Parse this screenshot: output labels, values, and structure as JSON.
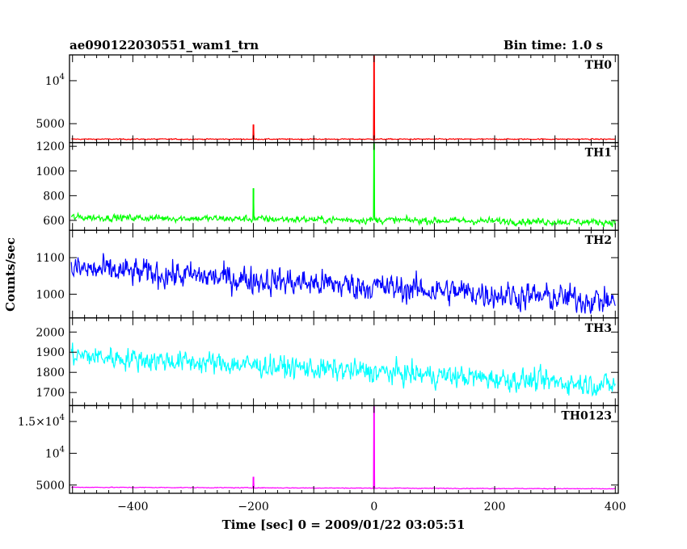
{
  "header": {
    "left": "ae090122030551_wam1_trn",
    "right": "Bin time: 1.0 s"
  },
  "chart_data": {
    "type": "line",
    "title": "ae090122030551_wam1_trn",
    "subtitle": "Bin time: 1.0 s",
    "xlabel": "Time [sec] 0 = 2009/01/22 03:05:51",
    "ylabel": "Counts/sec",
    "xlim": [
      -505,
      405
    ],
    "xticks": [
      -400,
      -200,
      0,
      200,
      400
    ],
    "xtick_labels": [
      "−400",
      "−200",
      "0",
      "200",
      "400"
    ],
    "grid": false,
    "panels": [
      {
        "name": "TH0",
        "color": "#ff0000",
        "ylim": [
          2800,
          13000
        ],
        "yticks": [
          5000,
          10000
        ],
        "ytick_labels": [
          {
            "base": "5000",
            "exp": ""
          },
          {
            "base": "10",
            "exp": "4"
          }
        ],
        "baseline": 3200,
        "noise": 60,
        "trend": 0,
        "spikes": [
          {
            "x": -200,
            "y": 4900
          },
          {
            "x": 0,
            "y": 13000
          }
        ]
      },
      {
        "name": "TH1",
        "color": "#00ff00",
        "ylim": [
          520,
          1230
        ],
        "yticks": [
          600,
          800,
          1000,
          1200
        ],
        "ytick_labels": [
          {
            "base": "600",
            "exp": ""
          },
          {
            "base": "800",
            "exp": ""
          },
          {
            "base": "1000",
            "exp": ""
          },
          {
            "base": "1200",
            "exp": ""
          }
        ],
        "baseline": 625,
        "noise": 28,
        "trend": -40,
        "spikes": [
          {
            "x": -200,
            "y": 860
          },
          {
            "x": 0,
            "y": 1230
          }
        ]
      },
      {
        "name": "TH2",
        "color": "#0000ff",
        "ylim": [
          935,
          1175
        ],
        "yticks": [
          1000,
          1100
        ],
        "ytick_labels": [
          {
            "base": "1000",
            "exp": ""
          },
          {
            "base": "1100",
            "exp": ""
          }
        ],
        "baseline": 1070,
        "noise": 38,
        "trend": -90,
        "spikes": []
      },
      {
        "name": "TH3",
        "color": "#00ffff",
        "ylim": [
          1635,
          2070
        ],
        "yticks": [
          1700,
          1800,
          1900,
          2000
        ],
        "ytick_labels": [
          {
            "base": "1700",
            "exp": ""
          },
          {
            "base": "1800",
            "exp": ""
          },
          {
            "base": "1900",
            "exp": ""
          },
          {
            "base": "2000",
            "exp": ""
          }
        ],
        "baseline": 1885,
        "noise": 55,
        "trend": -150,
        "spikes": []
      },
      {
        "name": "TH0123",
        "color": "#ff00ff",
        "ylim": [
          3700,
          17500
        ],
        "yticks": [
          5000,
          10000,
          15000
        ],
        "ytick_labels": [
          {
            "base": "5000",
            "exp": ""
          },
          {
            "base": "10",
            "exp": "4"
          },
          {
            "base": "1.5×10",
            "exp": "4"
          }
        ],
        "baseline": 4650,
        "noise": 60,
        "trend": -250,
        "spikes": [
          {
            "x": -200,
            "y": 6300
          },
          {
            "x": 0,
            "y": 17500
          }
        ]
      }
    ]
  }
}
